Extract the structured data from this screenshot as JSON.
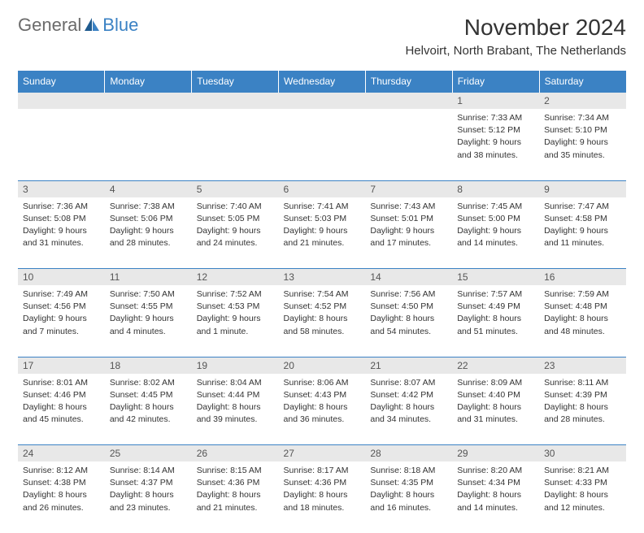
{
  "logo": {
    "general": "General",
    "blue": "Blue"
  },
  "title": "November 2024",
  "location": "Helvoirt, North Brabant, The Netherlands",
  "colors": {
    "header_bg": "#3b82c4",
    "header_text": "#ffffff",
    "daynum_bg": "#e8e8e8",
    "grid_line": "#3b82c4",
    "text": "#333333",
    "logo_gray": "#6b6b6b",
    "logo_blue": "#3b82c4"
  },
  "weekdays": [
    "Sunday",
    "Monday",
    "Tuesday",
    "Wednesday",
    "Thursday",
    "Friday",
    "Saturday"
  ],
  "weeks": [
    [
      null,
      null,
      null,
      null,
      null,
      {
        "n": "1",
        "sr": "Sunrise: 7:33 AM",
        "ss": "Sunset: 5:12 PM",
        "dl1": "Daylight: 9 hours",
        "dl2": "and 38 minutes."
      },
      {
        "n": "2",
        "sr": "Sunrise: 7:34 AM",
        "ss": "Sunset: 5:10 PM",
        "dl1": "Daylight: 9 hours",
        "dl2": "and 35 minutes."
      }
    ],
    [
      {
        "n": "3",
        "sr": "Sunrise: 7:36 AM",
        "ss": "Sunset: 5:08 PM",
        "dl1": "Daylight: 9 hours",
        "dl2": "and 31 minutes."
      },
      {
        "n": "4",
        "sr": "Sunrise: 7:38 AM",
        "ss": "Sunset: 5:06 PM",
        "dl1": "Daylight: 9 hours",
        "dl2": "and 28 minutes."
      },
      {
        "n": "5",
        "sr": "Sunrise: 7:40 AM",
        "ss": "Sunset: 5:05 PM",
        "dl1": "Daylight: 9 hours",
        "dl2": "and 24 minutes."
      },
      {
        "n": "6",
        "sr": "Sunrise: 7:41 AM",
        "ss": "Sunset: 5:03 PM",
        "dl1": "Daylight: 9 hours",
        "dl2": "and 21 minutes."
      },
      {
        "n": "7",
        "sr": "Sunrise: 7:43 AM",
        "ss": "Sunset: 5:01 PM",
        "dl1": "Daylight: 9 hours",
        "dl2": "and 17 minutes."
      },
      {
        "n": "8",
        "sr": "Sunrise: 7:45 AM",
        "ss": "Sunset: 5:00 PM",
        "dl1": "Daylight: 9 hours",
        "dl2": "and 14 minutes."
      },
      {
        "n": "9",
        "sr": "Sunrise: 7:47 AM",
        "ss": "Sunset: 4:58 PM",
        "dl1": "Daylight: 9 hours",
        "dl2": "and 11 minutes."
      }
    ],
    [
      {
        "n": "10",
        "sr": "Sunrise: 7:49 AM",
        "ss": "Sunset: 4:56 PM",
        "dl1": "Daylight: 9 hours",
        "dl2": "and 7 minutes."
      },
      {
        "n": "11",
        "sr": "Sunrise: 7:50 AM",
        "ss": "Sunset: 4:55 PM",
        "dl1": "Daylight: 9 hours",
        "dl2": "and 4 minutes."
      },
      {
        "n": "12",
        "sr": "Sunrise: 7:52 AM",
        "ss": "Sunset: 4:53 PM",
        "dl1": "Daylight: 9 hours",
        "dl2": "and 1 minute."
      },
      {
        "n": "13",
        "sr": "Sunrise: 7:54 AM",
        "ss": "Sunset: 4:52 PM",
        "dl1": "Daylight: 8 hours",
        "dl2": "and 58 minutes."
      },
      {
        "n": "14",
        "sr": "Sunrise: 7:56 AM",
        "ss": "Sunset: 4:50 PM",
        "dl1": "Daylight: 8 hours",
        "dl2": "and 54 minutes."
      },
      {
        "n": "15",
        "sr": "Sunrise: 7:57 AM",
        "ss": "Sunset: 4:49 PM",
        "dl1": "Daylight: 8 hours",
        "dl2": "and 51 minutes."
      },
      {
        "n": "16",
        "sr": "Sunrise: 7:59 AM",
        "ss": "Sunset: 4:48 PM",
        "dl1": "Daylight: 8 hours",
        "dl2": "and 48 minutes."
      }
    ],
    [
      {
        "n": "17",
        "sr": "Sunrise: 8:01 AM",
        "ss": "Sunset: 4:46 PM",
        "dl1": "Daylight: 8 hours",
        "dl2": "and 45 minutes."
      },
      {
        "n": "18",
        "sr": "Sunrise: 8:02 AM",
        "ss": "Sunset: 4:45 PM",
        "dl1": "Daylight: 8 hours",
        "dl2": "and 42 minutes."
      },
      {
        "n": "19",
        "sr": "Sunrise: 8:04 AM",
        "ss": "Sunset: 4:44 PM",
        "dl1": "Daylight: 8 hours",
        "dl2": "and 39 minutes."
      },
      {
        "n": "20",
        "sr": "Sunrise: 8:06 AM",
        "ss": "Sunset: 4:43 PM",
        "dl1": "Daylight: 8 hours",
        "dl2": "and 36 minutes."
      },
      {
        "n": "21",
        "sr": "Sunrise: 8:07 AM",
        "ss": "Sunset: 4:42 PM",
        "dl1": "Daylight: 8 hours",
        "dl2": "and 34 minutes."
      },
      {
        "n": "22",
        "sr": "Sunrise: 8:09 AM",
        "ss": "Sunset: 4:40 PM",
        "dl1": "Daylight: 8 hours",
        "dl2": "and 31 minutes."
      },
      {
        "n": "23",
        "sr": "Sunrise: 8:11 AM",
        "ss": "Sunset: 4:39 PM",
        "dl1": "Daylight: 8 hours",
        "dl2": "and 28 minutes."
      }
    ],
    [
      {
        "n": "24",
        "sr": "Sunrise: 8:12 AM",
        "ss": "Sunset: 4:38 PM",
        "dl1": "Daylight: 8 hours",
        "dl2": "and 26 minutes."
      },
      {
        "n": "25",
        "sr": "Sunrise: 8:14 AM",
        "ss": "Sunset: 4:37 PM",
        "dl1": "Daylight: 8 hours",
        "dl2": "and 23 minutes."
      },
      {
        "n": "26",
        "sr": "Sunrise: 8:15 AM",
        "ss": "Sunset: 4:36 PM",
        "dl1": "Daylight: 8 hours",
        "dl2": "and 21 minutes."
      },
      {
        "n": "27",
        "sr": "Sunrise: 8:17 AM",
        "ss": "Sunset: 4:36 PM",
        "dl1": "Daylight: 8 hours",
        "dl2": "and 18 minutes."
      },
      {
        "n": "28",
        "sr": "Sunrise: 8:18 AM",
        "ss": "Sunset: 4:35 PM",
        "dl1": "Daylight: 8 hours",
        "dl2": "and 16 minutes."
      },
      {
        "n": "29",
        "sr": "Sunrise: 8:20 AM",
        "ss": "Sunset: 4:34 PM",
        "dl1": "Daylight: 8 hours",
        "dl2": "and 14 minutes."
      },
      {
        "n": "30",
        "sr": "Sunrise: 8:21 AM",
        "ss": "Sunset: 4:33 PM",
        "dl1": "Daylight: 8 hours",
        "dl2": "and 12 minutes."
      }
    ]
  ]
}
